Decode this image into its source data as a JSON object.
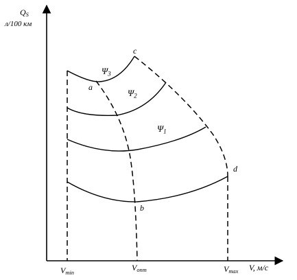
{
  "figure": {
    "y_axis": {
      "symbol": "Q",
      "subscript": "S",
      "unit": "л/100 км"
    },
    "x_axis": {
      "symbol": "V",
      "unit": ", м/с"
    },
    "x_ticks": {
      "min": {
        "symbol": "V",
        "subscript": "min"
      },
      "opt": {
        "symbol": "V",
        "subscript": "опт"
      },
      "max": {
        "symbol": "V",
        "subscript": "max"
      }
    },
    "points": {
      "a": "a",
      "b": "b",
      "c": "c",
      "d": "d"
    },
    "curves": [
      {
        "symbol": "Ψ",
        "subscript": "3"
      },
      {
        "symbol": "Ψ",
        "subscript": "2"
      },
      {
        "symbol": "Ψ",
        "subscript": "1"
      }
    ],
    "colors": {
      "line": "#000000",
      "background": "#ffffff"
    }
  }
}
